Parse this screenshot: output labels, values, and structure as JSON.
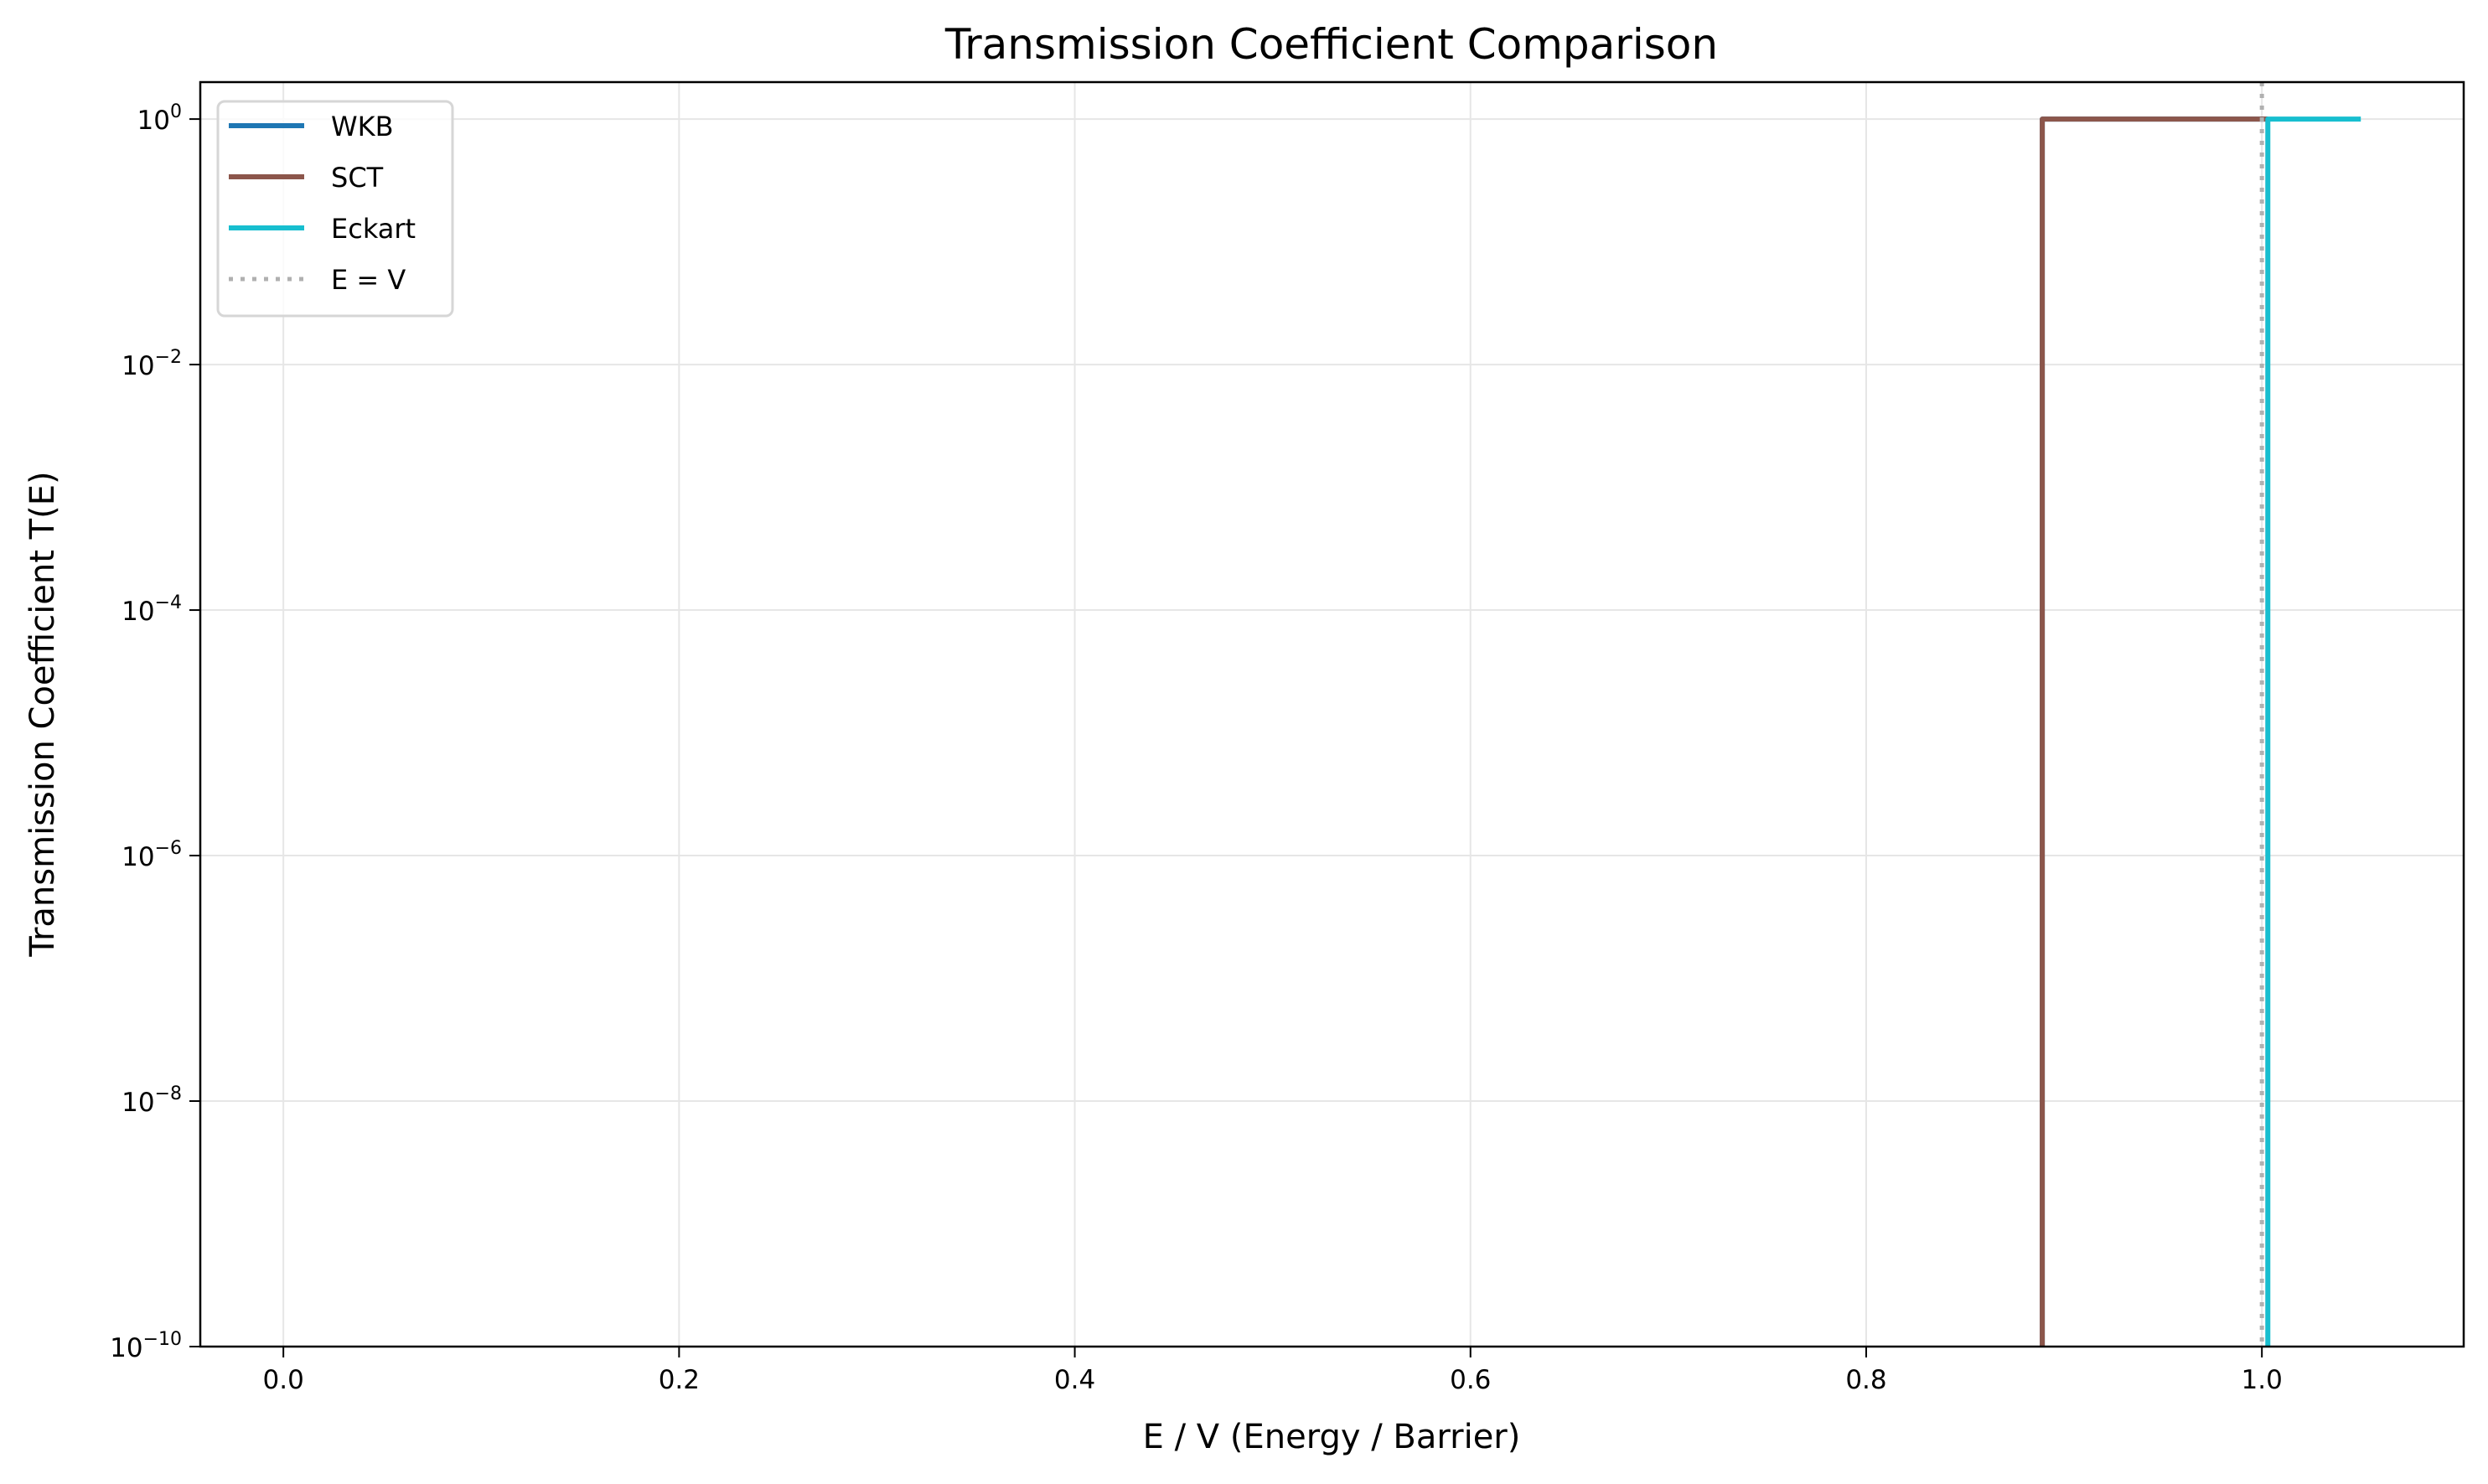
{
  "chart_data": {
    "type": "line",
    "title": "Transmission Coefficient Comparison",
    "xlabel": "E / V (Energy / Barrier)",
    "ylabel": "Transmission Coefficient T(E)",
    "xlim": [
      -0.042,
      1.102
    ],
    "ylim": [
      1e-10,
      2
    ],
    "yscale": "log",
    "grid": true,
    "legend_placement": "upper-left",
    "xticks": [
      {
        "value": 0.0,
        "label": "0.0"
      },
      {
        "value": 0.2,
        "label": "0.2"
      },
      {
        "value": 0.4,
        "label": "0.4"
      },
      {
        "value": 0.6,
        "label": "0.6"
      },
      {
        "value": 0.8,
        "label": "0.8"
      },
      {
        "value": 1.0,
        "label": "1.0"
      }
    ],
    "yticks": [
      {
        "value": 1,
        "base": "10",
        "exp": "0"
      },
      {
        "value": 0.01,
        "base": "10",
        "exp": "−2"
      },
      {
        "value": 0.0001,
        "base": "10",
        "exp": "−4"
      },
      {
        "value": 1e-06,
        "base": "10",
        "exp": "−6"
      },
      {
        "value": 1e-08,
        "base": "10",
        "exp": "−8"
      },
      {
        "value": 1e-10,
        "base": "10",
        "exp": "−10"
      }
    ],
    "series": [
      {
        "name": "WKB",
        "color": "#1f77b4",
        "style": "solid",
        "x": [
          0.889,
          0.889,
          1.003
        ],
        "y": [
          1e-10,
          1,
          1
        ]
      },
      {
        "name": "SCT",
        "color": "#8c564b",
        "style": "solid",
        "x": [
          0.889,
          0.889,
          1.003
        ],
        "y": [
          1e-10,
          1,
          1
        ]
      },
      {
        "name": "Eckart",
        "color": "#17becf",
        "style": "solid",
        "x": [
          1.003,
          1.003,
          1.05
        ],
        "y": [
          1e-10,
          1,
          1
        ]
      },
      {
        "name": "E = V",
        "color": "#b0b0b0",
        "style": "dotted",
        "vline": 1.0
      }
    ]
  }
}
